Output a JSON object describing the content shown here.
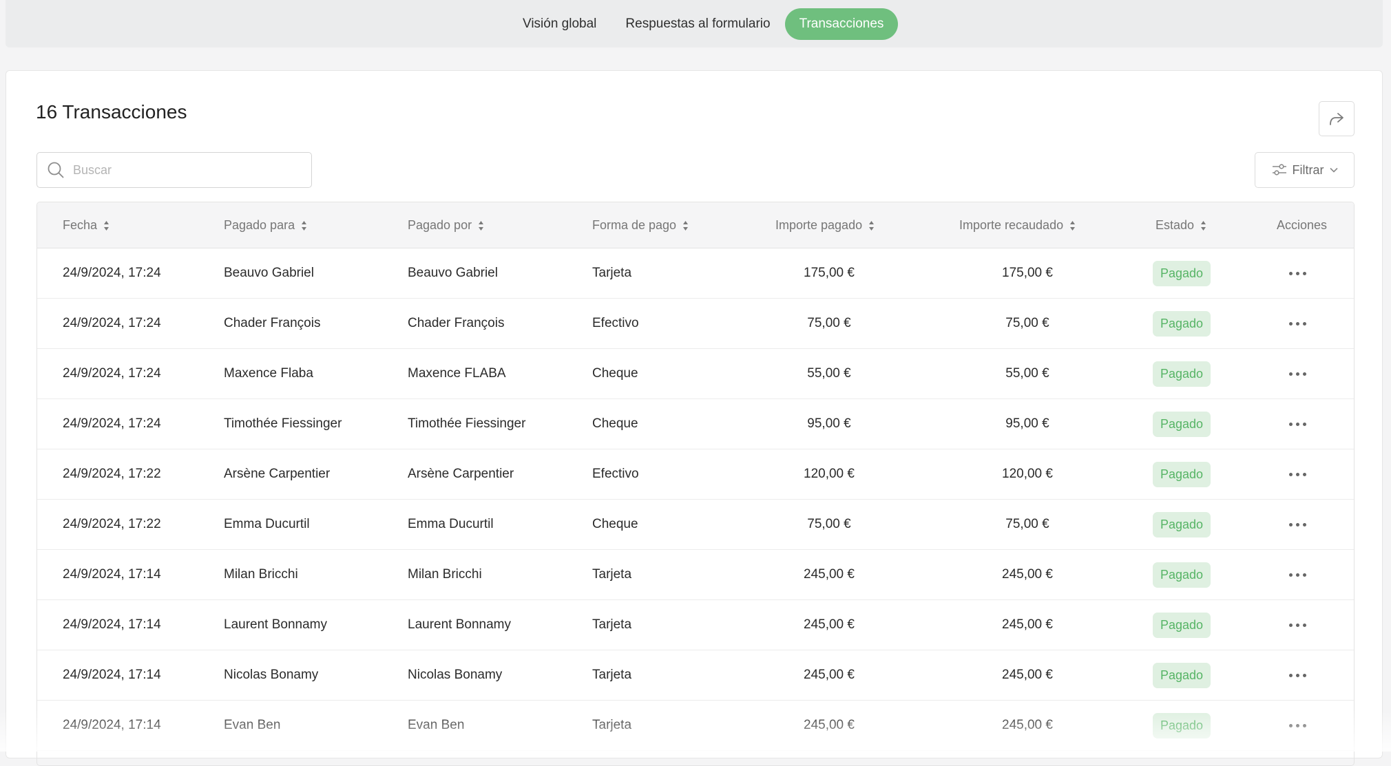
{
  "tabs": [
    {
      "label": "Visión global",
      "active": false
    },
    {
      "label": "Respuestas al formulario",
      "active": false
    },
    {
      "label": "Transacciones",
      "active": true
    }
  ],
  "title": "16 Transacciones",
  "search": {
    "placeholder": "Buscar"
  },
  "filter": {
    "label": "Filtrar"
  },
  "columns": {
    "fecha": "Fecha",
    "pagado_para": "Pagado para",
    "pagado_por": "Pagado por",
    "forma_pago": "Forma de pago",
    "importe_pagado": "Importe pagado",
    "importe_recaudado": "Importe recaudado",
    "estado": "Estado",
    "acciones": "Acciones"
  },
  "rows": [
    {
      "fecha": "24/9/2024, 17:24",
      "para": "Beauvo Gabriel",
      "por": "Beauvo Gabriel",
      "forma": "Tarjeta",
      "pagado": "175,00 €",
      "recaudado": "175,00 €",
      "estado": "Pagado"
    },
    {
      "fecha": "24/9/2024, 17:24",
      "para": "Chader François",
      "por": "Chader François",
      "forma": "Efectivo",
      "pagado": "75,00 €",
      "recaudado": "75,00 €",
      "estado": "Pagado"
    },
    {
      "fecha": "24/9/2024, 17:24",
      "para": "Maxence Flaba",
      "por": "Maxence FLABA",
      "forma": "Cheque",
      "pagado": "55,00 €",
      "recaudado": "55,00 €",
      "estado": "Pagado"
    },
    {
      "fecha": "24/9/2024, 17:24",
      "para": "Timothée Fiessinger",
      "por": "Timothée Fiessinger",
      "forma": "Cheque",
      "pagado": "95,00 €",
      "recaudado": "95,00 €",
      "estado": "Pagado"
    },
    {
      "fecha": "24/9/2024, 17:22",
      "para": "Arsène Carpentier",
      "por": "Arsène Carpentier",
      "forma": "Efectivo",
      "pagado": "120,00 €",
      "recaudado": "120,00 €",
      "estado": "Pagado"
    },
    {
      "fecha": "24/9/2024, 17:22",
      "para": "Emma Ducurtil",
      "por": "Emma Ducurtil",
      "forma": "Cheque",
      "pagado": "75,00 €",
      "recaudado": "75,00 €",
      "estado": "Pagado"
    },
    {
      "fecha": "24/9/2024, 17:14",
      "para": "Milan Bricchi",
      "por": "Milan Bricchi",
      "forma": "Tarjeta",
      "pagado": "245,00 €",
      "recaudado": "245,00 €",
      "estado": "Pagado"
    },
    {
      "fecha": "24/9/2024, 17:14",
      "para": "Laurent Bonnamy",
      "por": "Laurent Bonnamy",
      "forma": "Tarjeta",
      "pagado": "245,00 €",
      "recaudado": "245,00 €",
      "estado": "Pagado"
    },
    {
      "fecha": "24/9/2024, 17:14",
      "para": "Nicolas Bonamy",
      "por": "Nicolas Bonamy",
      "forma": "Tarjeta",
      "pagado": "245,00 €",
      "recaudado": "245,00 €",
      "estado": "Pagado"
    },
    {
      "fecha": "24/9/2024, 17:14",
      "para": "Evan Ben",
      "por": "Evan Ben",
      "forma": "Tarjeta",
      "pagado": "245,00 €",
      "recaudado": "245,00 €",
      "estado": "Pagado"
    }
  ],
  "colors": {
    "accent": "#6fbf7e",
    "badge_bg": "#dff0e1",
    "badge_text": "#56b465"
  },
  "icons": {
    "search": "search-icon",
    "share": "share-icon",
    "filter": "sliders-icon",
    "chevron": "chevron-down-icon",
    "sort": "sort-icon",
    "more": "more-horizontal-icon"
  }
}
